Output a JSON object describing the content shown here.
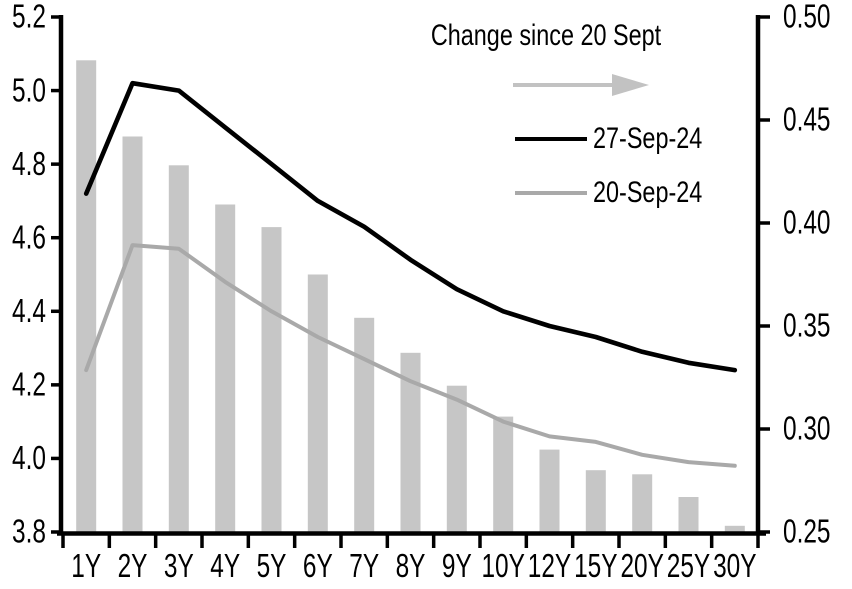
{
  "chart_data": {
    "type": "combo",
    "title": "",
    "categories": [
      "1Y",
      "2Y",
      "3Y",
      "4Y",
      "5Y",
      "6Y",
      "7Y",
      "8Y",
      "9Y",
      "10Y",
      "12Y",
      "15Y",
      "20Y",
      "25Y",
      "30Y"
    ],
    "series": [
      {
        "name": "Change since 20 Sept",
        "type": "bar",
        "axis": "right",
        "color": "#c6c6c6",
        "values": [
          0.479,
          0.442,
          0.428,
          0.409,
          0.398,
          0.375,
          0.354,
          0.337,
          0.321,
          0.306,
          0.29,
          0.28,
          0.278,
          0.267,
          0.253
        ]
      },
      {
        "name": "27-Sep-24",
        "type": "line",
        "axis": "left",
        "color": "#000000",
        "values": [
          4.72,
          5.02,
          5.0,
          4.9,
          4.8,
          4.7,
          4.63,
          4.54,
          4.46,
          4.4,
          4.36,
          4.33,
          4.29,
          4.26,
          4.24
        ]
      },
      {
        "name": "20-Sep-24",
        "type": "line",
        "axis": "left",
        "color": "#a9a9a9",
        "values": [
          4.24,
          4.58,
          4.57,
          4.48,
          4.4,
          4.33,
          4.27,
          4.21,
          4.16,
          4.1,
          4.06,
          4.045,
          4.01,
          3.99,
          3.98
        ]
      }
    ],
    "left_axis": {
      "min": 3.8,
      "max": 5.2,
      "tick_labels": [
        "5.2",
        "5.0",
        "4.8",
        "4.6",
        "4.4",
        "4.2",
        "4.0",
        "3.8"
      ]
    },
    "right_axis": {
      "min": 0.25,
      "max": 0.5,
      "tick_labels": [
        "0.50",
        "0.45",
        "0.40",
        "0.35",
        "0.30",
        "0.25"
      ]
    },
    "legend": {
      "arrow_label": "Change since 20 Sept",
      "arrow_color": "#c2c2c2",
      "entries": [
        "27-Sep-24",
        "20-Sep-24"
      ],
      "position": "inside-top-right"
    },
    "grid": false
  }
}
